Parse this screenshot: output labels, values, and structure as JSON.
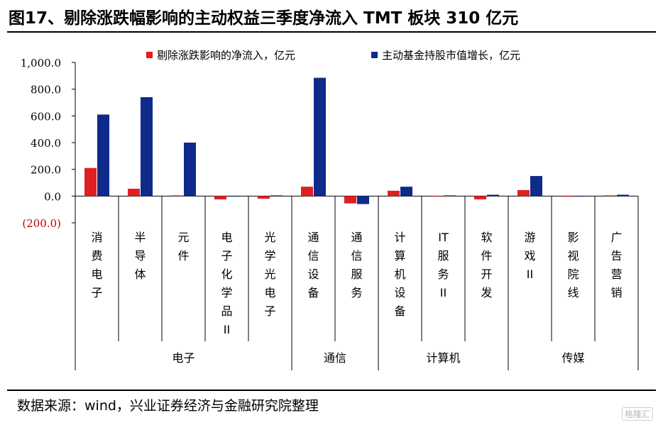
{
  "figure": {
    "title": "图17、剔除涨跌幅影响的主动权益三季度净流入 TMT 板块 310 亿元",
    "source": "数据来源：wind，兴业证券经济与金融研究院整理",
    "watermark": "格隆汇"
  },
  "colors": {
    "series1": "#e02020",
    "series2": "#0e2a8a",
    "negative_tick": "#c00000"
  },
  "chart_data": {
    "type": "bar",
    "ylim": [
      -200,
      1000
    ],
    "yticks": [
      "1,000.0",
      "800.0",
      "600.0",
      "400.0",
      "200.0",
      "0.0",
      "(200.0)"
    ],
    "ytick_values": [
      1000,
      800,
      600,
      400,
      200,
      0,
      -200
    ],
    "categories": [
      "消费电子",
      "半导体",
      "元件",
      "电子化学品II",
      "光学光电子",
      "通信设备",
      "通信服务",
      "计算机设备",
      "IT服务II",
      "软件开发",
      "游戏II",
      "影视院线",
      "广告营销"
    ],
    "groups": [
      {
        "label": "电子",
        "count": 5
      },
      {
        "label": "通信",
        "count": 2
      },
      {
        "label": "计算机",
        "count": 3
      },
      {
        "label": "传媒",
        "count": 3
      }
    ],
    "series": [
      {
        "name": "剔除涨跌影响的净流入，亿元",
        "values": [
          210,
          55,
          5,
          -25,
          -20,
          70,
          -55,
          40,
          0,
          -25,
          45,
          -5,
          5
        ]
      },
      {
        "name": "主动基金持股市值增长，亿元",
        "values": [
          610,
          740,
          400,
          0,
          5,
          885,
          -60,
          70,
          5,
          10,
          150,
          0,
          10
        ]
      }
    ],
    "legend_position": "top",
    "grid": false
  }
}
